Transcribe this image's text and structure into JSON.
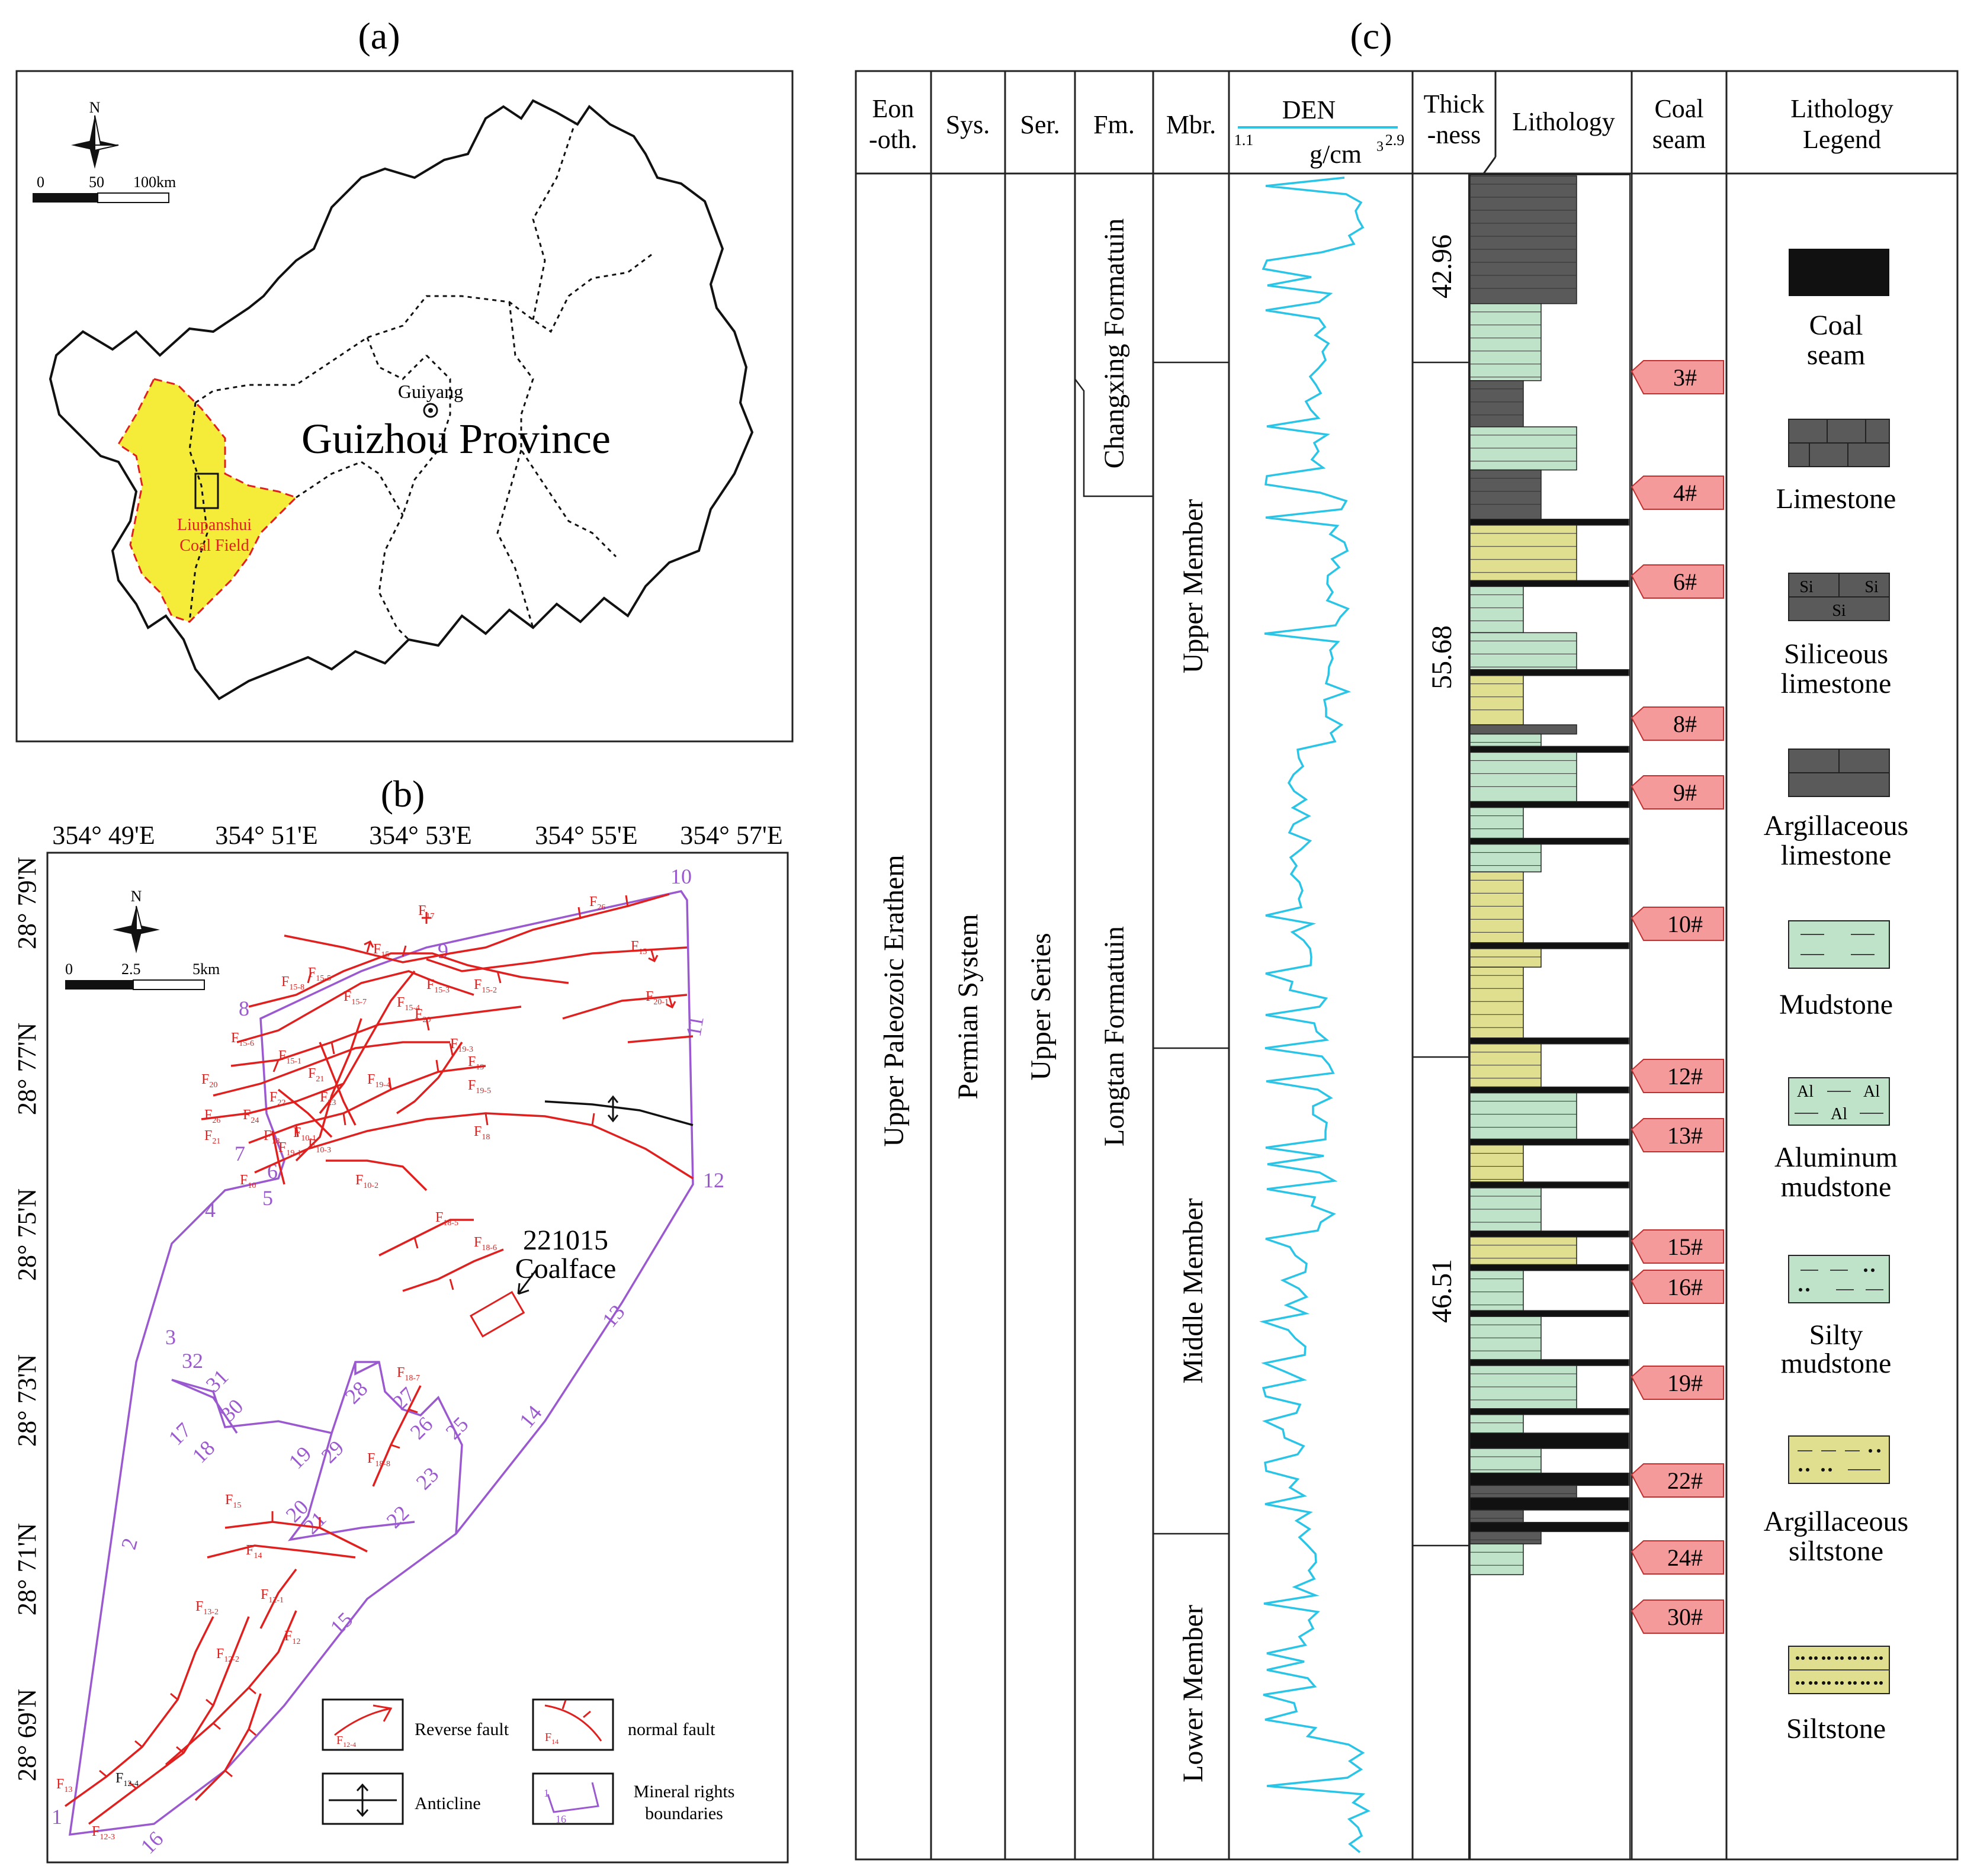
{
  "panel_a": {
    "label": "(a)",
    "north": "N",
    "scale": {
      "s0": "0",
      "s1": "50",
      "s2": "100km"
    },
    "city": "Guiyang",
    "province": "Guizhou Province",
    "coalfield_line1": "Liupanshui",
    "coalfield_line2": "Coal Field",
    "colors": {
      "coalfield": "#f5ec3a",
      "coalfield_edge": "#e0201e"
    }
  },
  "panel_b": {
    "label": "(b)",
    "north": "N",
    "scale": {
      "s0": "0",
      "s1": "2.5",
      "s2": "5km"
    },
    "lon_ticks": [
      "354° 49'E",
      "354° 51'E",
      "354° 53'E",
      "354° 55'E",
      "354° 57'E"
    ],
    "lat_ticks": [
      "28° 79'N",
      "28° 77'N",
      "28° 75'N",
      "28° 73'N",
      "28° 71'N",
      "28° 69'N"
    ],
    "coalface_line1": "221015",
    "coalface_line2": "Coalface",
    "boundary_numbers": [
      "1",
      "2",
      "3",
      "4",
      "5",
      "6",
      "7",
      "8",
      "9",
      "10",
      "11",
      "12",
      "13",
      "14",
      "15",
      "16",
      "17",
      "18",
      "19",
      "20",
      "21",
      "22",
      "23",
      "25",
      "26",
      "27",
      "28",
      "29",
      "30",
      "31",
      "32"
    ],
    "legend": {
      "reverse": "Reverse fault",
      "normal": "normal fault",
      "anticline": "Anticline",
      "rights_line1": "Mineral rights",
      "rights_line2": "boundaries"
    },
    "colors": {
      "fault": "#e0201e",
      "boundary": "#9b59d0",
      "anticline": "#111111"
    }
  },
  "panel_c": {
    "label": "(c)",
    "headers": {
      "eon1": "Eon",
      "eon2": "-oth.",
      "sys": "Sys.",
      "ser": "Ser.",
      "fm": "Fm.",
      "mbr": "Mbr.",
      "den": "DEN",
      "den_min": "1.1",
      "den_max": "2.9",
      "den_unit": "g/cm",
      "thick1": "Thick",
      "thick2": "-ness",
      "lith": "Lithology",
      "seam1": "Coal",
      "seam2": "seam",
      "legend1": "Lithology",
      "legend2": "Legend"
    },
    "eon": "Upper   Paleozoic   Erathem",
    "system": "Permian   System",
    "series": "Upper   Series",
    "formations": [
      "Changxing Formatuin",
      "Longtan   Formatuin"
    ],
    "members": [
      "Upper Member",
      "Middle Member",
      "Lower Member"
    ],
    "thickness": [
      "42.96",
      "55.68",
      "46.51"
    ],
    "coal_seams": [
      "3#",
      "4#",
      "6#",
      "8#",
      "9#",
      "10#",
      "12#",
      "13#",
      "15#",
      "16#",
      "19#",
      "22#",
      "24#",
      "30#"
    ],
    "legend": [
      {
        "l1": "Coal",
        "l2": "seam"
      },
      {
        "l1": "Limestone",
        "l2": ""
      },
      {
        "l1": "Siliceous",
        "l2": "limestone"
      },
      {
        "l1": "Argillaceous",
        "l2": "limestone"
      },
      {
        "l1": "Mudstone",
        "l2": ""
      },
      {
        "l1": "Aluminum",
        "l2": "mudstone"
      },
      {
        "l1": "Silty",
        "l2": "mudstone"
      },
      {
        "l1": "Argillaceous",
        "l2": "siltstone"
      },
      {
        "l1": "Siltstone",
        "l2": ""
      }
    ],
    "legend_symbols": {
      "si": "Si",
      "al": "Al"
    },
    "colors": {
      "den_curve": "#29c4e6",
      "coal": "#111111",
      "limestone": "#5a5a5a",
      "mudstone": "#bfe3c8",
      "siltstone": "#e0df8f",
      "seam_tag": "#f59a9a"
    }
  }
}
